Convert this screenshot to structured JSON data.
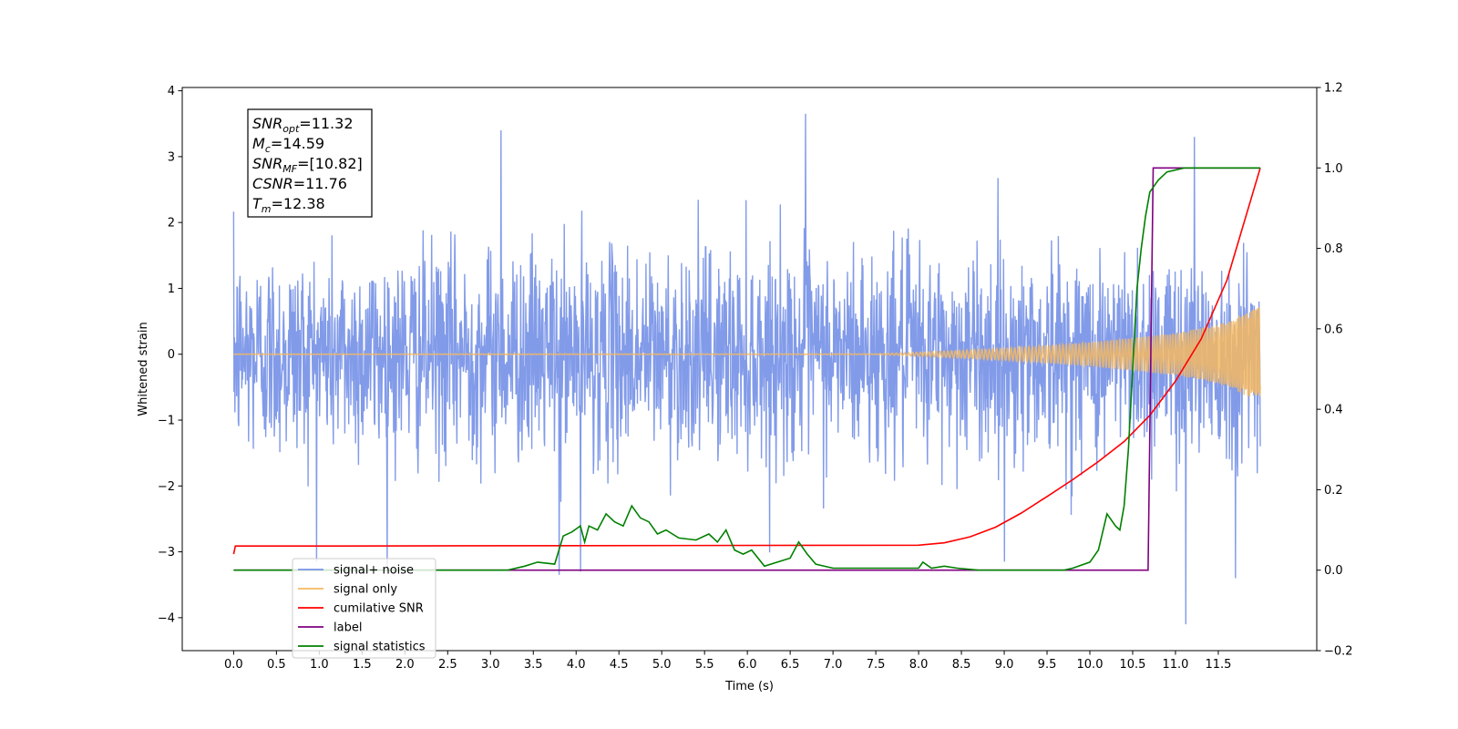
{
  "chart_data": {
    "type": "line",
    "xlabel": "Time (s)",
    "ylabel": "Whitened strain",
    "ylabel_right": "",
    "xlim": [
      -0.6,
      12.65
    ],
    "ylim": [
      -4.5,
      4.05
    ],
    "ylim_right": [
      -0.2,
      1.2
    ],
    "x_ticks": [
      0.0,
      0.5,
      1.0,
      1.5,
      2.0,
      2.5,
      3.0,
      3.5,
      4.0,
      4.5,
      5.0,
      5.5,
      6.0,
      6.5,
      7.0,
      7.5,
      8.0,
      8.5,
      9.0,
      9.5,
      10.0,
      10.5,
      11.0,
      11.5
    ],
    "x_tick_labels": [
      "0.0",
      "0.5",
      "1.0",
      "1.5",
      "2.0",
      "2.5",
      "3.0",
      "3.5",
      "4.0",
      "4.5",
      "5.0",
      "5.5",
      "6.0",
      "6.5",
      "7.0",
      "7.5",
      "8.0",
      "8.5",
      "9.0",
      "9.5",
      "10.0",
      "10.5",
      "11.0",
      "11.5"
    ],
    "y_ticks": [
      -4,
      -3,
      -2,
      -1,
      0,
      1,
      2,
      3,
      4
    ],
    "y_tick_labels": [
      "−4",
      "−3",
      "−2",
      "−1",
      "0",
      "1",
      "2",
      "3",
      "4"
    ],
    "y_ticks_right": [
      -0.2,
      0.0,
      0.2,
      0.4,
      0.6,
      0.8,
      1.0,
      1.2
    ],
    "y_tick_labels_right": [
      "−0.2",
      "0.0",
      "0.2",
      "0.4",
      "0.6",
      "0.8",
      "1.0",
      "1.2"
    ],
    "grid": false,
    "legend_position": "lower-left",
    "info_box": {
      "position": "top-left",
      "lines": [
        {
          "base": "SNR",
          "sub": "opt",
          "value": "=11.32"
        },
        {
          "base": "M",
          "sub": "c",
          "value": "=14.59"
        },
        {
          "base": "SNR",
          "sub": "MF",
          "value": "=[10.82]"
        },
        {
          "base": "CSNR",
          "sub": "",
          "value": "=11.76"
        },
        {
          "base": "T",
          "sub": "m",
          "value": "=12.38"
        }
      ]
    },
    "series": [
      {
        "name": "signal+ noise",
        "axis": "left",
        "color": "#7b96e8",
        "kind": "noise",
        "x_range": [
          0.0,
          11.99
        ],
        "amplitude_typical": 1.0,
        "max": 3.65,
        "min": -4.1,
        "mean": 0.0
      },
      {
        "name": "signal only",
        "axis": "left",
        "color": "#f5b961",
        "kind": "chirp",
        "x_range": [
          0.0,
          11.99
        ],
        "amplitude_envelope": [
          [
            0.0,
            0.0
          ],
          [
            7.5,
            0.005
          ],
          [
            8.0,
            0.03
          ],
          [
            9.0,
            0.09
          ],
          [
            10.0,
            0.18
          ],
          [
            11.0,
            0.32
          ],
          [
            11.5,
            0.45
          ],
          [
            11.99,
            0.72
          ]
        ]
      },
      {
        "name": "cumilative SNR",
        "axis": "right",
        "color": "#ff0000",
        "x": [
          0.0,
          0.02,
          1.0,
          8.0,
          8.3,
          8.6,
          8.9,
          9.2,
          9.5,
          9.8,
          10.1,
          10.4,
          10.7,
          11.0,
          11.3,
          11.6,
          11.99
        ],
        "y": [
          0.04,
          0.06,
          0.06,
          0.062,
          0.068,
          0.083,
          0.107,
          0.142,
          0.183,
          0.225,
          0.27,
          0.32,
          0.385,
          0.47,
          0.575,
          0.72,
          1.0
        ]
      },
      {
        "name": "label",
        "axis": "right",
        "color": "#800080",
        "x": [
          0.0,
          10.68,
          10.74,
          11.99
        ],
        "y": [
          0.0,
          0.0,
          1.0,
          1.0
        ]
      },
      {
        "name": "signal statistics",
        "axis": "right",
        "color": "#008000",
        "x": [
          0.0,
          2.5,
          3.2,
          3.4,
          3.55,
          3.75,
          3.85,
          3.95,
          4.05,
          4.1,
          4.15,
          4.25,
          4.35,
          4.45,
          4.55,
          4.65,
          4.75,
          4.85,
          4.95,
          5.05,
          5.2,
          5.4,
          5.55,
          5.65,
          5.75,
          5.85,
          5.95,
          6.05,
          6.2,
          6.35,
          6.5,
          6.6,
          6.7,
          6.8,
          7.0,
          7.2,
          7.5,
          8.0,
          8.05,
          8.15,
          8.3,
          8.45,
          8.7,
          9.7,
          9.8,
          10.0,
          10.1,
          10.2,
          10.3,
          10.35,
          10.4,
          10.45,
          10.5,
          10.55,
          10.6,
          10.65,
          10.7,
          10.8,
          10.9,
          11.1,
          11.5,
          11.99
        ],
        "y": [
          0.0,
          0.0,
          0.0,
          0.01,
          0.02,
          0.015,
          0.085,
          0.095,
          0.11,
          0.07,
          0.11,
          0.1,
          0.14,
          0.12,
          0.11,
          0.16,
          0.13,
          0.12,
          0.09,
          0.1,
          0.08,
          0.075,
          0.09,
          0.07,
          0.1,
          0.05,
          0.04,
          0.05,
          0.01,
          0.02,
          0.03,
          0.07,
          0.04,
          0.015,
          0.005,
          0.005,
          0.005,
          0.005,
          0.02,
          0.005,
          0.01,
          0.005,
          0.0,
          0.0,
          0.005,
          0.02,
          0.05,
          0.14,
          0.11,
          0.1,
          0.16,
          0.3,
          0.5,
          0.7,
          0.8,
          0.88,
          0.94,
          0.97,
          0.99,
          1.0,
          1.0,
          1.0
        ]
      }
    ]
  }
}
